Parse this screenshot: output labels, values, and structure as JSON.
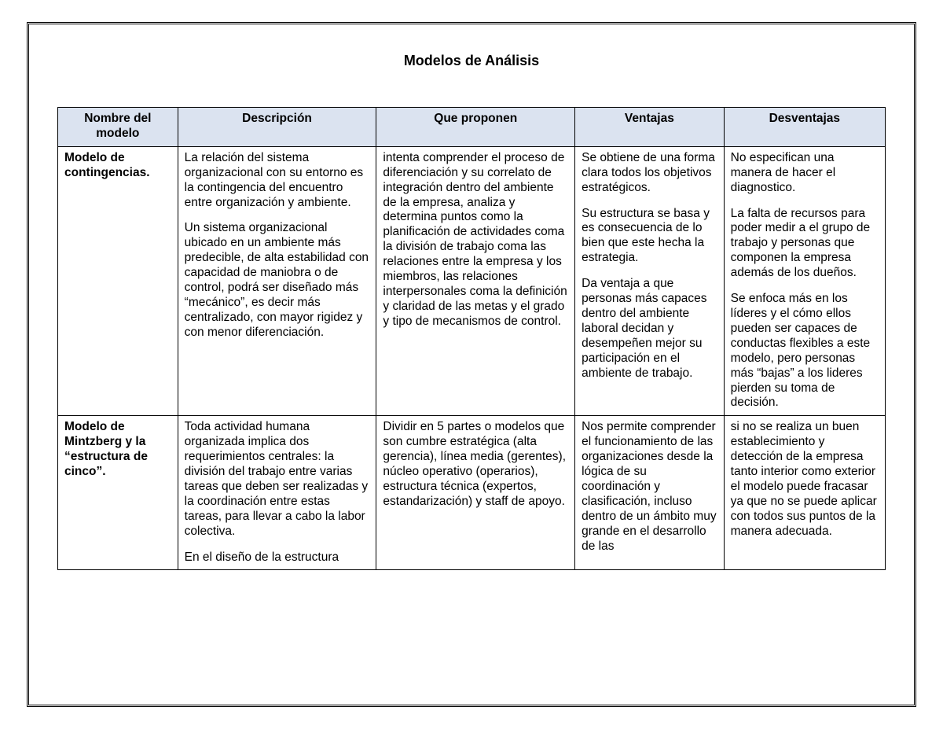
{
  "title": "Modelos de Análisis",
  "header_bg": "#dbe3f0",
  "border_color": "#000000",
  "columns": {
    "name": "Nombre del modelo",
    "desc": "Descripción",
    "prop": "Que proponen",
    "adv": "Ventajas",
    "dis": "Desventajas"
  },
  "rows": [
    {
      "name": "Modelo de contingencias.",
      "desc_p1": "La relación del sistema organizacional con su entorno es la contingencia del encuentro entre organización y ambiente.",
      "desc_p2": "Un sistema organizacional ubicado en un ambiente más predecible, de alta estabilidad con capacidad de maniobra o de control, podrá ser diseñado más “mecánico”, es decir más centralizado, con mayor rigidez y con menor diferenciación.",
      "prop": "intenta comprender el proceso de diferenciación y su correlato de integración dentro del ambiente de la empresa, analiza y determina puntos como la planificación de actividades coma la división de trabajo coma las relaciones entre la empresa y los miembros, las relaciones interpersonales coma la definición y claridad de las metas y el grado y tipo de mecanismos de control.",
      "adv_p1": "Se obtiene de una forma clara todos los objetivos estratégicos.",
      "adv_p2": "Su estructura se basa y es consecuencia de lo bien que este hecha la estrategia.",
      "adv_p3": "Da ventaja a que personas más capaces dentro del ambiente laboral decidan y desempeñen mejor su participación en el ambiente de trabajo.",
      "dis_p1": "No especifican una manera de hacer el diagnostico.",
      "dis_p2": "La falta de recursos para poder medir a el grupo de trabajo y personas que componen la empresa además de los dueños.",
      "dis_p3": "Se enfoca más en los líderes y el cómo ellos pueden ser capaces de conductas flexibles a este modelo, pero personas más “bajas” a los lideres pierden su toma de decisión."
    },
    {
      "name": "Modelo de Mintzberg y la “estructura de cinco”.",
      "desc_p1": "Toda actividad humana organizada implica dos requerimientos centrales: la división del trabajo entre varias tareas que deben ser realizadas y la coordinación entre estas tareas, para llevar a cabo la labor colectiva.",
      "desc_p2": "En el diseño de la estructura",
      "prop": "Dividir en 5 partes o modelos que son cumbre estratégica (alta gerencia), línea media (gerentes), núcleo operativo (operarios), estructura técnica (expertos, estandarización) y staff de apoyo.",
      "adv": "Nos permite comprender el funcionamiento de las organizaciones desde la lógica de su coordinación y clasificación, incluso dentro de un ámbito muy grande en el desarrollo de las",
      "dis": "si no se realiza un buen establecimiento y detección de la empresa tanto interior como exterior el modelo puede fracasar ya que no se puede aplicar con todos sus puntos de la manera adecuada."
    }
  ]
}
